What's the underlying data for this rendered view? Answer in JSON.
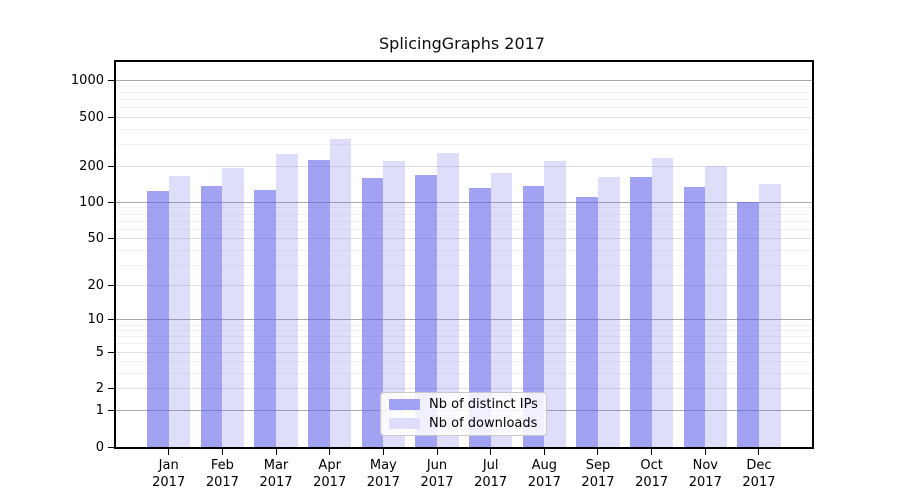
{
  "title": "SplicingGraphs 2017",
  "legend": {
    "items": [
      {
        "label": "Nb of distinct IPs",
        "color": "#a2a2f3"
      },
      {
        "label": "Nb of downloads",
        "color": "#dedefb"
      }
    ]
  },
  "chart_data": {
    "type": "bar",
    "title": "SplicingGraphs 2017",
    "categories": [
      "Jan 2017",
      "Feb 2017",
      "Mar 2017",
      "Apr 2017",
      "May 2017",
      "Jun 2017",
      "Jul 2017",
      "Aug 2017",
      "Sep 2017",
      "Oct 2017",
      "Nov 2017",
      "Dec 2017"
    ],
    "x_ticks": [
      {
        "month": "Jan",
        "year": "2017"
      },
      {
        "month": "Feb",
        "year": "2017"
      },
      {
        "month": "Mar",
        "year": "2017"
      },
      {
        "month": "Apr",
        "year": "2017"
      },
      {
        "month": "May",
        "year": "2017"
      },
      {
        "month": "Jun",
        "year": "2017"
      },
      {
        "month": "Jul",
        "year": "2017"
      },
      {
        "month": "Aug",
        "year": "2017"
      },
      {
        "month": "Sep",
        "year": "2017"
      },
      {
        "month": "Oct",
        "year": "2017"
      },
      {
        "month": "Nov",
        "year": "2017"
      },
      {
        "month": "Dec",
        "year": "2017"
      }
    ],
    "series": [
      {
        "name": "Nb of distinct IPs",
        "values": [
          124,
          136,
          127,
          226,
          158,
          170,
          132,
          138,
          112,
          163,
          134,
          100
        ],
        "color": "#a2a2f3",
        "fill": "rgba(100,100,235,0.60)"
      },
      {
        "name": "Nb of downloads",
        "values": [
          166,
          193,
          253,
          335,
          222,
          254,
          176,
          221,
          162,
          231,
          201,
          141
        ],
        "color": "#dedefb",
        "fill": "rgba(100,100,235,0.21)"
      }
    ],
    "ylabel": "",
    "xlabel": "",
    "y_scale": "log10(1+x)",
    "ylim": [
      0,
      1400
    ],
    "y_ticks": [
      {
        "label": "1000",
        "value": 1000
      },
      {
        "label": "500",
        "value": 500
      },
      {
        "label": "200",
        "value": 200
      },
      {
        "label": "100",
        "value": 100
      },
      {
        "label": "50",
        "value": 50
      },
      {
        "label": "20",
        "value": 20
      },
      {
        "label": "10",
        "value": 10
      },
      {
        "label": "5",
        "value": 5
      },
      {
        "label": "2",
        "value": 2
      },
      {
        "label": "1",
        "value": 1
      },
      {
        "label": "0",
        "value": 0
      }
    ],
    "gridlines": {
      "major": [
        1,
        10,
        100,
        1000
      ],
      "mid": [
        2,
        5,
        20,
        50,
        200,
        500
      ],
      "minor": [
        3,
        4,
        6,
        7,
        8,
        9,
        30,
        40,
        60,
        70,
        80,
        90,
        300,
        400,
        600,
        700,
        800,
        900
      ]
    },
    "grid": true,
    "legend_position": "lower center"
  }
}
